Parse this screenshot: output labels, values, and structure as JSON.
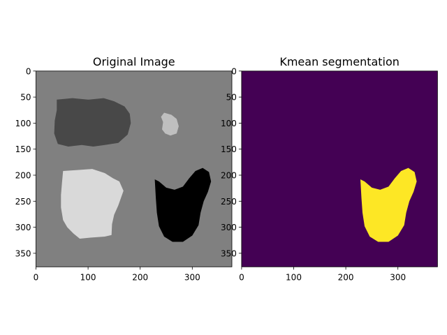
{
  "chart_data": [
    {
      "type": "heatmap",
      "title": "Original Image",
      "image_size": [
        376,
        376
      ],
      "xlim": [
        0,
        376
      ],
      "ylim": [
        376,
        0
      ],
      "xticks": [
        0,
        100,
        200,
        300
      ],
      "yticks": [
        0,
        50,
        100,
        150,
        200,
        250,
        300,
        350
      ],
      "background_color": "#808080",
      "regions": [
        {
          "label": "dark-gray-blob",
          "color": "#484848",
          "outline": [
            [
              40,
              55
            ],
            [
              70,
              52
            ],
            [
              100,
              55
            ],
            [
              130,
              52
            ],
            [
              150,
              58
            ],
            [
              170,
              68
            ],
            [
              180,
              82
            ],
            [
              182,
              100
            ],
            [
              176,
              122
            ],
            [
              158,
              138
            ],
            [
              132,
              142
            ],
            [
              110,
              145
            ],
            [
              88,
              142
            ],
            [
              62,
              145
            ],
            [
              42,
              140
            ],
            [
              35,
              120
            ],
            [
              36,
              95
            ],
            [
              40,
              75
            ]
          ]
        },
        {
          "label": "light-gray-small-blob",
          "color": "#bfbfbf",
          "outline": [
            [
              246,
              80
            ],
            [
              260,
              84
            ],
            [
              270,
              92
            ],
            [
              274,
              106
            ],
            [
              270,
              120
            ],
            [
              258,
              124
            ],
            [
              248,
              120
            ],
            [
              242,
              112
            ],
            [
              244,
              98
            ],
            [
              240,
              88
            ]
          ]
        },
        {
          "label": "white-blob",
          "color": "#d9d9d9",
          "outline": [
            [
              52,
              192
            ],
            [
              82,
              190
            ],
            [
              108,
              188
            ],
            [
              132,
              196
            ],
            [
              148,
              206
            ],
            [
              160,
              212
            ],
            [
              168,
              230
            ],
            [
              158,
              258
            ],
            [
              150,
              276
            ],
            [
              146,
              294
            ],
            [
              145,
              315
            ],
            [
              132,
              318
            ],
            [
              104,
              320
            ],
            [
              84,
              322
            ],
            [
              72,
              312
            ],
            [
              60,
              300
            ],
            [
              52,
              286
            ],
            [
              48,
              262
            ],
            [
              48,
              238
            ],
            [
              50,
              214
            ]
          ]
        },
        {
          "label": "black-blob",
          "color": "#000000",
          "outline": [
            [
              228,
              208
            ],
            [
              236,
              212
            ],
            [
              250,
              224
            ],
            [
              266,
              228
            ],
            [
              282,
              222
            ],
            [
              294,
              206
            ],
            [
              306,
              192
            ],
            [
              320,
              186
            ],
            [
              332,
              194
            ],
            [
              336,
              212
            ],
            [
              330,
              232
            ],
            [
              322,
              250
            ],
            [
              316,
              272
            ],
            [
              312,
              296
            ],
            [
              300,
              316
            ],
            [
              282,
              328
            ],
            [
              262,
              328
            ],
            [
              246,
              318
            ],
            [
              236,
              298
            ],
            [
              232,
              272
            ],
            [
              230,
              244
            ]
          ]
        }
      ]
    },
    {
      "type": "heatmap",
      "title": "Kmean segmentation",
      "image_size": [
        376,
        376
      ],
      "xlim": [
        0,
        376
      ],
      "ylim": [
        376,
        0
      ],
      "xticks": [
        0,
        100,
        200,
        300
      ],
      "yticks": [
        0,
        50,
        100,
        150,
        200,
        250,
        300,
        350
      ],
      "background_color": "#440154",
      "regions": [
        {
          "label": "segmented-blob",
          "color": "#fde725",
          "outline": [
            [
              228,
              208
            ],
            [
              236,
              212
            ],
            [
              250,
              224
            ],
            [
              266,
              228
            ],
            [
              282,
              222
            ],
            [
              294,
              206
            ],
            [
              306,
              192
            ],
            [
              320,
              186
            ],
            [
              332,
              194
            ],
            [
              336,
              212
            ],
            [
              330,
              232
            ],
            [
              322,
              250
            ],
            [
              316,
              272
            ],
            [
              312,
              296
            ],
            [
              300,
              316
            ],
            [
              282,
              328
            ],
            [
              262,
              328
            ],
            [
              246,
              318
            ],
            [
              236,
              298
            ],
            [
              232,
              272
            ],
            [
              230,
              244
            ]
          ]
        }
      ]
    }
  ]
}
